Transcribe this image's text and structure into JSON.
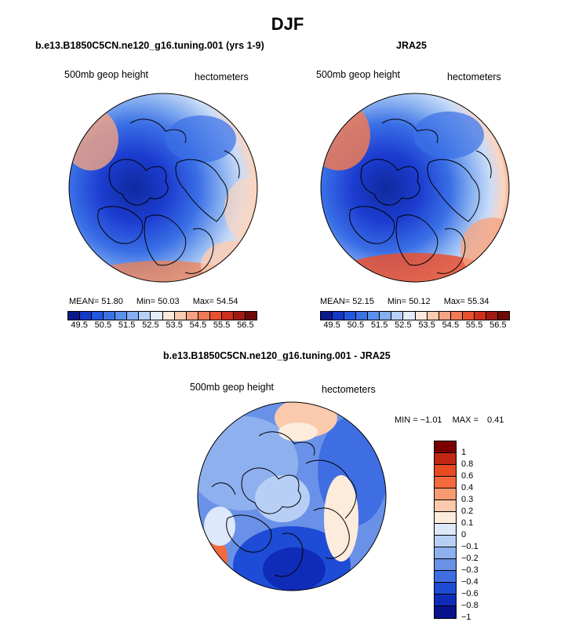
{
  "figure_title": "DJF",
  "panels": {
    "model": {
      "title": "b.e13.B1850C5CN.ne120_g16.tuning.001 (yrs 1-9)",
      "left_label": "500mb geop height",
      "right_label": "hectometers",
      "mean_label": "MEAN=",
      "mean": "51.80",
      "min_label": "Min=",
      "min": "50.03",
      "max_label": "Max=",
      "max": "54.54"
    },
    "obs": {
      "title": "JRA25",
      "left_label": "500mb geop height",
      "right_label": "hectometers",
      "mean_label": "MEAN=",
      "mean": "52.15",
      "min_label": "Min=",
      "min": "50.12",
      "max_label": "Max=",
      "max": "55.34"
    },
    "diff": {
      "title": "b.e13.B1850C5CN.ne120_g16.tuning.001 - JRA25",
      "left_label": "500mb geop height",
      "right_label": "hectometers",
      "min_label": "MIN =",
      "min": "−1.01",
      "max_label": "MAX =",
      "max": "0.41"
    }
  },
  "abs_colorbar": {
    "colors": [
      "#0b1a8c",
      "#1438c8",
      "#2457e0",
      "#3a72e6",
      "#5a90ec",
      "#86aff0",
      "#b8d0f6",
      "#e2ecfb",
      "#fde9dc",
      "#fbcbb1",
      "#f5a482",
      "#ef7b56",
      "#e85030",
      "#cf2f1a",
      "#a11b10",
      "#6e0b08"
    ],
    "tick_labels": [
      "49.5",
      "50.5",
      "51.5",
      "52.5",
      "53.5",
      "54.5",
      "55.5",
      "56.5"
    ]
  },
  "diff_colorbar": {
    "colors": [
      "#7a0000",
      "#c02612",
      "#e84a22",
      "#f36a3c",
      "#f79a72",
      "#fbc9ac",
      "#fdebdc",
      "#dde8fb",
      "#b8cff5",
      "#8fb0ef",
      "#6a91e8",
      "#3f6ee2",
      "#1e4cd6",
      "#0f2cb8",
      "#07128c"
    ],
    "tick_labels": [
      "1",
      "0.8",
      "0.6",
      "0.4",
      "0.3",
      "0.2",
      "0.1",
      "0",
      "−0.1",
      "−0.2",
      "−0.3",
      "−0.4",
      "−0.6",
      "−0.8",
      "−1"
    ]
  },
  "map_colors": {
    "deep_blue": "#1c3cd0",
    "mid_blue": "#3a6fe6",
    "light_blue": "#88b0f0",
    "pale_blue": "#c9dcf8",
    "pale_orange": "#fbd6c0",
    "orange": "#f08050",
    "red": "#d83a1c"
  }
}
